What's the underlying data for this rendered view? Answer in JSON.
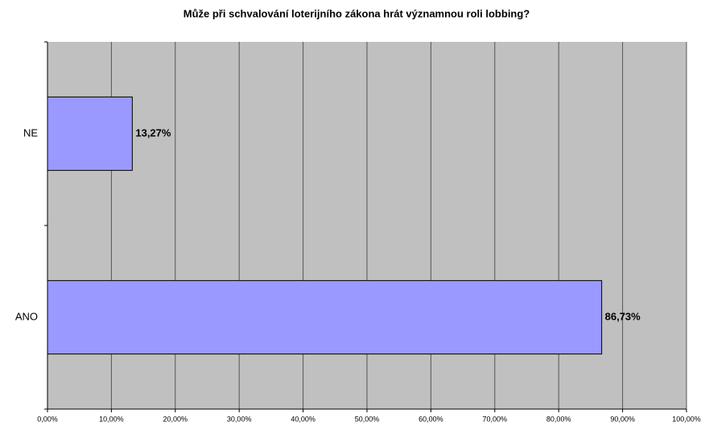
{
  "chart_data": {
    "type": "hbar",
    "title": "Může při schvalování loterijního zákona hrát významnou roli lobbing?",
    "categories": [
      "NE",
      "ANO"
    ],
    "values": [
      13.27,
      86.73
    ],
    "value_labels": [
      "13,27%",
      "86,73%"
    ],
    "color": "#9999ff",
    "xlim": [
      0,
      100
    ],
    "xticks": [
      {
        "value": 0,
        "label": "0,00%"
      },
      {
        "value": 10,
        "label": "10,00%"
      },
      {
        "value": 20,
        "label": "20,00%"
      },
      {
        "value": 30,
        "label": "30,00%"
      },
      {
        "value": 40,
        "label": "40,00%"
      },
      {
        "value": 50,
        "label": "50,00%"
      },
      {
        "value": 60,
        "label": "60,00%"
      },
      {
        "value": 70,
        "label": "70,00%"
      },
      {
        "value": 80,
        "label": "80,00%"
      },
      {
        "value": 90,
        "label": "90,00%"
      },
      {
        "value": 100,
        "label": "100,00%"
      }
    ],
    "grid": true
  }
}
